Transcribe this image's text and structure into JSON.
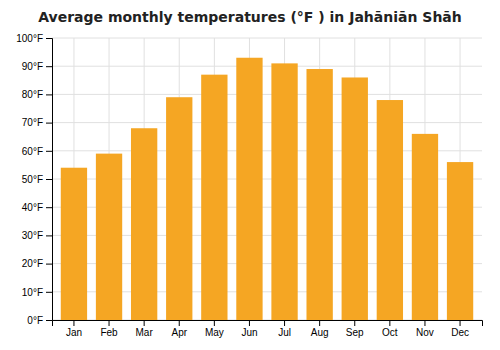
{
  "chart_data": {
    "type": "bar",
    "title": "Average monthly temperatures (°F ) in Jahāniān Shāh",
    "categories": [
      "Jan",
      "Feb",
      "Mar",
      "Apr",
      "May",
      "Jun",
      "Jul",
      "Aug",
      "Sep",
      "Oct",
      "Nov",
      "Dec"
    ],
    "values": [
      54,
      59,
      68,
      79,
      87,
      93,
      91,
      89,
      86,
      78,
      66,
      56
    ],
    "color": "#F5A623",
    "ylim": [
      0,
      100
    ],
    "yticks": [
      {
        "value": 0,
        "label": "0°F"
      },
      {
        "value": 10,
        "label": "10°F"
      },
      {
        "value": 20,
        "label": "20°F"
      },
      {
        "value": 30,
        "label": "30°F"
      },
      {
        "value": 40,
        "label": "40°F"
      },
      {
        "value": 50,
        "label": "50°F"
      },
      {
        "value": 60,
        "label": "60°F"
      },
      {
        "value": 70,
        "label": "70°F"
      },
      {
        "value": 80,
        "label": "80°F"
      },
      {
        "value": 90,
        "label": "90°F"
      },
      {
        "value": 100,
        "label": "100°F"
      }
    ],
    "grid": true
  }
}
